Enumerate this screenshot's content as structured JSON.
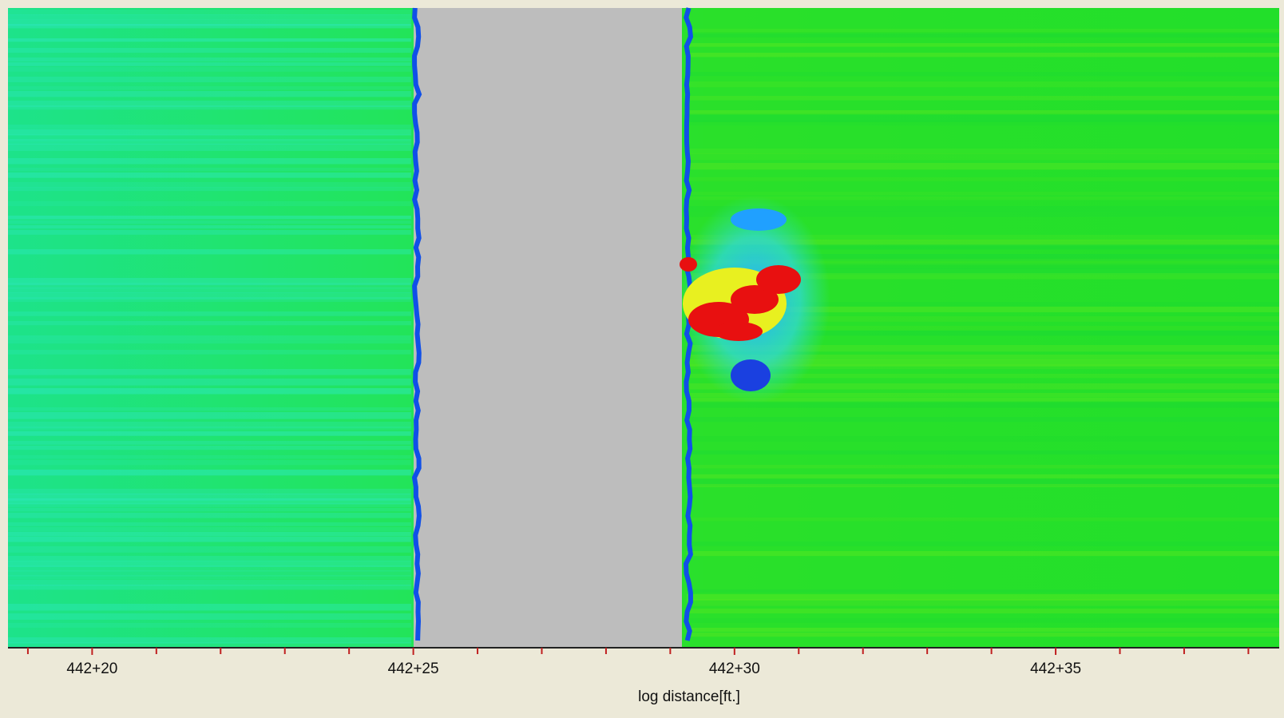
{
  "chart_data": {
    "type": "heatmap",
    "x_label": "log distance[ft.]",
    "xlim": [
      44218.69,
      44238.48
    ],
    "xticks": [
      {
        "value": 44220,
        "label": "442+20"
      },
      {
        "value": 44225,
        "label": "442+25"
      },
      {
        "value": 44230,
        "label": "442+30"
      },
      {
        "value": 44235,
        "label": "442+35"
      }
    ],
    "minor_xticks": [
      44219,
      44221,
      44222,
      44223,
      44224,
      44226,
      44227,
      44228,
      44229,
      44231,
      44232,
      44233,
      44234,
      44236,
      44237,
      44238
    ]
  }
}
